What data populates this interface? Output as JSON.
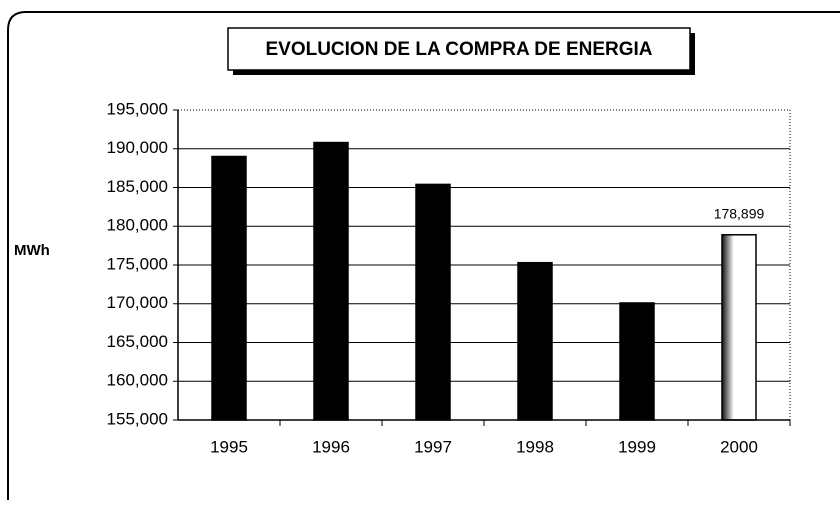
{
  "chart_data": {
    "type": "bar",
    "title": "EVOLUCION DE LA COMPRA DE ENERGIA",
    "ylabel": "MWh",
    "categories": [
      "1995",
      "1996",
      "1997",
      "1998",
      "1999",
      "2000"
    ],
    "values": [
      189000,
      190800,
      185400,
      175300,
      170100,
      178899
    ],
    "value_labels": [
      null,
      null,
      null,
      null,
      null,
      "178,899"
    ],
    "colors": [
      "#000000",
      "#000000",
      "#000000",
      "#000000",
      "#000000",
      "#ffffff"
    ],
    "ylim": [
      155000,
      195000
    ],
    "yticks": [
      {
        "value": 155000,
        "label": "155,000"
      },
      {
        "value": 160000,
        "label": "160,000"
      },
      {
        "value": 165000,
        "label": "165,000"
      },
      {
        "value": 170000,
        "label": "170,000"
      },
      {
        "value": 175000,
        "label": "175,000"
      },
      {
        "value": 180000,
        "label": "180,000"
      },
      {
        "value": 185000,
        "label": "185,000"
      },
      {
        "value": 190000,
        "label": "190,000"
      },
      {
        "value": 195000,
        "label": "195,000"
      }
    ],
    "grid": true
  }
}
